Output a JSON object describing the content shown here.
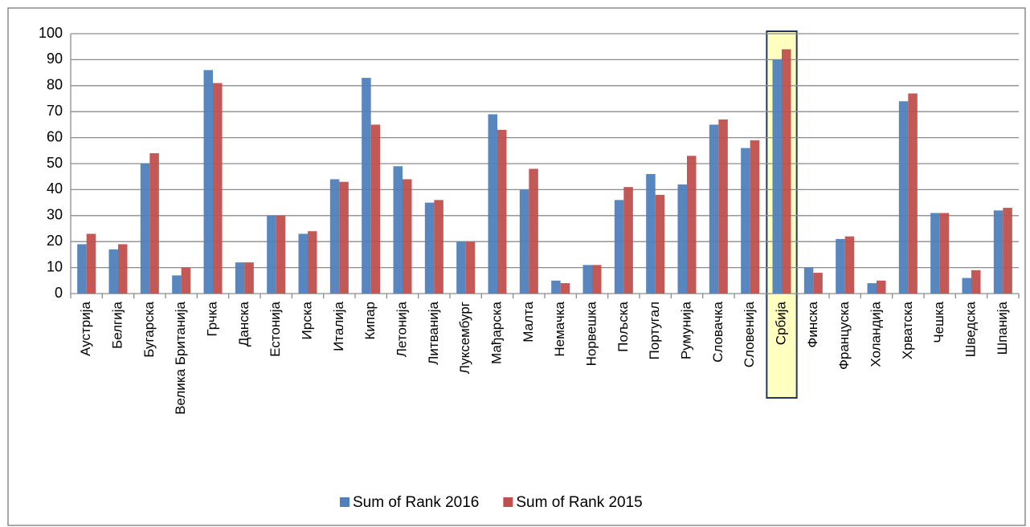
{
  "chart_data": {
    "type": "bar",
    "categories": [
      "Аустрија",
      "Белгија",
      "Бугарска",
      "Велика Британија",
      "Грчка",
      "Данска",
      "Естонија",
      "Ирска",
      "Италија",
      "Кипар",
      "Летонија",
      "Литванија",
      "Луксембург",
      "Мађарска",
      "Малта",
      "Немачка",
      "Норвешка",
      "Пољска",
      "Португал",
      "Румунија",
      "Словачка",
      "Словенија",
      "Србија",
      "Финска",
      "Француска",
      "Холандија",
      "Хрватска",
      "Чешка",
      "Шведска",
      "Шпанија"
    ],
    "series": [
      {
        "name": "Sum of Rank 2016",
        "color": "#4f81bd",
        "values": [
          19,
          17,
          50,
          7,
          86,
          12,
          30,
          23,
          44,
          83,
          49,
          35,
          20,
          69,
          40,
          5,
          11,
          36,
          46,
          42,
          65,
          56,
          90,
          10,
          21,
          4,
          74,
          31,
          6,
          32
        ]
      },
      {
        "name": "Sum of Rank 2015",
        "color": "#c0504d",
        "values": [
          23,
          19,
          54,
          10,
          81,
          12,
          30,
          24,
          43,
          65,
          44,
          36,
          20,
          63,
          48,
          4,
          11,
          41,
          38,
          53,
          67,
          59,
          94,
          8,
          22,
          5,
          77,
          31,
          9,
          33
        ]
      }
    ],
    "ylim": [
      0,
      100
    ],
    "yticks": [
      0,
      10,
      20,
      30,
      40,
      50,
      60,
      70,
      80,
      90,
      100
    ],
    "grid": true,
    "legend": "bottom",
    "highlight": "Србија"
  }
}
